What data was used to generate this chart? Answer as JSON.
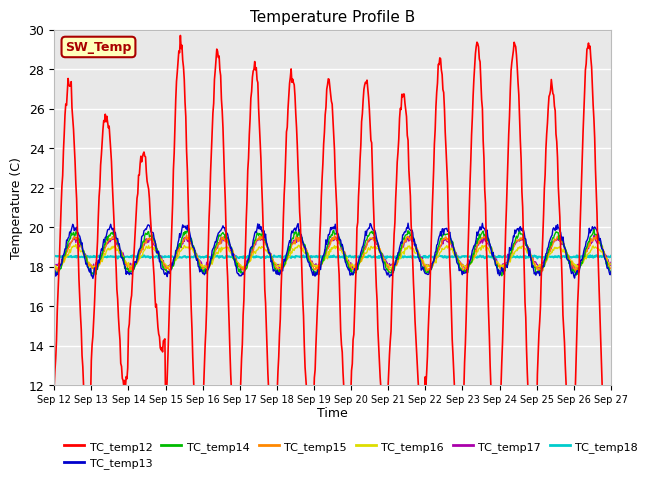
{
  "title": "Temperature Profile B",
  "xlabel": "Time",
  "ylabel": "Temperature (C)",
  "ylim": [
    12,
    30
  ],
  "x_tick_labels": [
    "Sep 12",
    "Sep 13",
    "Sep 14",
    "Sep 15",
    "Sep 16",
    "Sep 17",
    "Sep 18",
    "Sep 19",
    "Sep 20",
    "Sep 21",
    "Sep 22",
    "Sep 23",
    "Sep 24",
    "Sep 25",
    "Sep 26",
    "Sep 27"
  ],
  "annotation_text": "SW_Temp",
  "annotation_facecolor": "#FFFFBB",
  "annotation_edgecolor": "#AA0000",
  "plot_bg_color": "#E8E8E8",
  "fig_bg_color": "#FFFFFF",
  "series": [
    {
      "label": "TC_temp12",
      "color": "#FF0000",
      "linewidth": 1.2
    },
    {
      "label": "TC_temp13",
      "color": "#0000CC",
      "linewidth": 1.0
    },
    {
      "label": "TC_temp14",
      "color": "#00BB00",
      "linewidth": 1.0
    },
    {
      "label": "TC_temp15",
      "color": "#FF8800",
      "linewidth": 1.0
    },
    {
      "label": "TC_temp16",
      "color": "#DDDD00",
      "linewidth": 1.0
    },
    {
      "label": "TC_temp17",
      "color": "#AA00AA",
      "linewidth": 1.0
    },
    {
      "label": "TC_temp18",
      "color": "#00CCCC",
      "linewidth": 1.5
    }
  ],
  "yticks": [
    12,
    14,
    16,
    18,
    20,
    22,
    24,
    26,
    28,
    30
  ],
  "base_temp": 18.8,
  "day_amplitudes": [
    8.5,
    7.0,
    5.0,
    10.5,
    10.0,
    9.5,
    9.0,
    8.5,
    8.5,
    8.0,
    9.5,
    10.5,
    10.5,
    8.5,
    10.5
  ]
}
